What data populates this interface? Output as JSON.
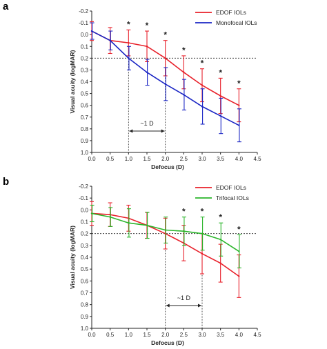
{
  "chart_data": [
    {
      "type": "line",
      "panel": "a",
      "xlabel": "Defocus  (D)",
      "ylabel": "Visual acuity (logMAR)",
      "xlim": [
        0,
        4.5
      ],
      "ylim": [
        -0.2,
        1.0
      ],
      "y_inverted": true,
      "x_ticks": [
        "0.0",
        "0.5",
        "1.0",
        "1.5",
        "2.0",
        "2.5",
        "3.0",
        "3.5",
        "4.0",
        "4.5"
      ],
      "y_ticks": [
        "-0.2",
        "-0.1",
        "0.0",
        "0.1",
        "0.2",
        "0.3",
        "0.4",
        "0.5",
        "0.6",
        "0.7",
        "0.8",
        "0.9",
        "1.0"
      ],
      "legend_position": "top-right",
      "reference_line_y": 0.2,
      "annotation": "~1 D",
      "annotation_range": [
        1.0,
        2.0
      ],
      "significance_marker": "*",
      "significant_at": [
        1.0,
        1.5,
        2.0,
        2.5,
        3.0,
        3.5,
        4.0
      ],
      "x": [
        0.0,
        0.5,
        1.0,
        1.5,
        2.0,
        2.5,
        3.0,
        3.5,
        4.0
      ],
      "series": [
        {
          "name": "EDOF IOLs",
          "color": "#e8202a",
          "values": [
            -0.03,
            0.05,
            0.07,
            0.1,
            0.2,
            0.32,
            0.43,
            0.52,
            0.6
          ],
          "error": [
            0.08,
            0.11,
            0.11,
            0.13,
            0.15,
            0.14,
            0.14,
            0.15,
            0.14
          ]
        },
        {
          "name": "Monofocal IOLs",
          "color": "#1a25c4",
          "values": [
            -0.03,
            0.05,
            0.2,
            0.32,
            0.42,
            0.51,
            0.61,
            0.69,
            0.77
          ],
          "error": [
            0.07,
            0.08,
            0.1,
            0.11,
            0.14,
            0.13,
            0.15,
            0.15,
            0.14
          ]
        }
      ]
    },
    {
      "type": "line",
      "panel": "b",
      "xlabel": "Defocus  (D)",
      "ylabel": "Visual acuity (logMAR)",
      "xlim": [
        0,
        4.5
      ],
      "ylim": [
        -0.2,
        1.0
      ],
      "y_inverted": true,
      "x_ticks": [
        "0.0",
        "0.5",
        "1.0",
        "1.5",
        "2.0",
        "2.5",
        "3.0",
        "3.5",
        "4.0",
        "4.5"
      ],
      "y_ticks": [
        "-0.2",
        "-0.1",
        "0.0",
        "0.1",
        "0.2",
        "0.3",
        "0.4",
        "0.5",
        "0.6",
        "0.7",
        "0.8",
        "0.9",
        "1.0"
      ],
      "legend_position": "top-right",
      "reference_line_y": 0.2,
      "annotation": "~1 D",
      "annotation_range": [
        2.0,
        3.0
      ],
      "significance_marker": "*",
      "significant_at": [
        2.5,
        3.0,
        3.5,
        4.0
      ],
      "x": [
        0.0,
        0.5,
        1.0,
        1.5,
        2.0,
        2.5,
        3.0,
        3.5,
        4.0
      ],
      "series": [
        {
          "name": "EDOF IOLs",
          "color": "#e8202a",
          "values": [
            0.03,
            0.04,
            0.07,
            0.13,
            0.2,
            0.28,
            0.37,
            0.45,
            0.56
          ],
          "error": [
            0.1,
            0.1,
            0.11,
            0.11,
            0.13,
            0.15,
            0.17,
            0.16,
            0.18
          ]
        },
        {
          "name": "Trifocal IOLs",
          "color": "#2ab52a",
          "values": [
            0.03,
            0.06,
            0.11,
            0.13,
            0.17,
            0.18,
            0.2,
            0.25,
            0.35
          ],
          "error": [
            0.07,
            0.08,
            0.12,
            0.11,
            0.11,
            0.12,
            0.14,
            0.14,
            0.14
          ]
        }
      ]
    }
  ]
}
